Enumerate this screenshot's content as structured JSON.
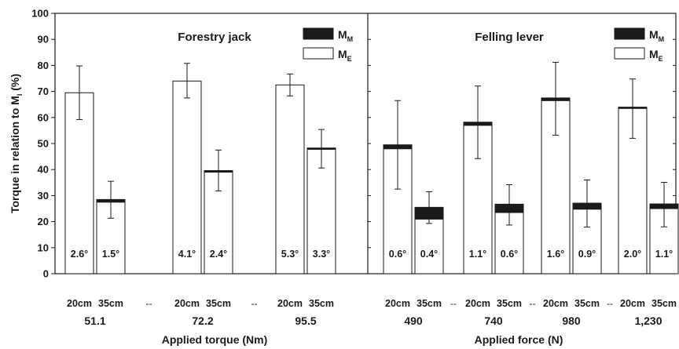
{
  "chart_data": {
    "type": "bar",
    "ylabel": "Torque in relation to M",
    "ylabel_sub": "I",
    "ylabel_unit": "(%)",
    "ylim": [
      0,
      100
    ],
    "yticks": [
      0,
      10,
      20,
      30,
      40,
      50,
      60,
      70,
      80,
      90,
      100
    ],
    "legend": [
      {
        "key": "MM",
        "label": "M",
        "sub": "M",
        "color": "#1a1a1a"
      },
      {
        "key": "ME",
        "label": "M",
        "sub": "E",
        "color": "#ffffff"
      }
    ],
    "separator": "--",
    "panels": [
      {
        "title": "Forestry jack",
        "xlabel": "Applied torque (Nm)",
        "groups": [
          {
            "value_label": "51.1",
            "bars": [
              {
                "length": "20cm",
                "ME": 69.5,
                "MM": 0,
                "err_low": 59.2,
                "err_high": 79.8,
                "angle": "2.6°"
              },
              {
                "length": "35cm",
                "ME": 27.5,
                "MM": 1.0,
                "err_low": 21.3,
                "err_high": 35.5,
                "angle": "1.5°"
              }
            ]
          },
          {
            "value_label": "72.2",
            "bars": [
              {
                "length": "20cm",
                "ME": 74.0,
                "MM": 0,
                "err_low": 67.5,
                "err_high": 80.8,
                "angle": "4.1°"
              },
              {
                "length": "35cm",
                "ME": 39.0,
                "MM": 0.6,
                "err_low": 31.8,
                "err_high": 47.5,
                "angle": "2.4°"
              }
            ]
          },
          {
            "value_label": "95.5",
            "bars": [
              {
                "length": "20cm",
                "ME": 72.5,
                "MM": 0,
                "err_low": 68.3,
                "err_high": 76.7,
                "angle": "5.3°"
              },
              {
                "length": "35cm",
                "ME": 47.8,
                "MM": 0.3,
                "err_low": 40.6,
                "err_high": 55.4,
                "angle": "3.3°"
              }
            ]
          }
        ]
      },
      {
        "title": "Felling lever",
        "xlabel": "Applied force (N)",
        "groups": [
          {
            "value_label": "490",
            "bars": [
              {
                "length": "20cm",
                "ME": 48.0,
                "MM": 1.5,
                "err_low": 32.5,
                "err_high": 66.5,
                "angle": "0.6°"
              },
              {
                "length": "35cm",
                "ME": 21.0,
                "MM": 4.5,
                "err_low": 19.3,
                "err_high": 31.5,
                "angle": "0.4°"
              }
            ]
          },
          {
            "value_label": "740",
            "bars": [
              {
                "length": "20cm",
                "ME": 57.0,
                "MM": 1.2,
                "err_low": 44.2,
                "err_high": 72.1,
                "angle": "1.1°"
              },
              {
                "length": "35cm",
                "ME": 23.5,
                "MM": 3.2,
                "err_low": 18.7,
                "err_high": 34.2,
                "angle": "0.6°"
              }
            ]
          },
          {
            "value_label": "980",
            "bars": [
              {
                "length": "20cm",
                "ME": 66.5,
                "MM": 1.0,
                "err_low": 53.2,
                "err_high": 81.2,
                "angle": "1.6°"
              },
              {
                "length": "35cm",
                "ME": 24.8,
                "MM": 2.3,
                "err_low": 17.9,
                "err_high": 36.0,
                "angle": "0.9°"
              }
            ]
          },
          {
            "value_label": "1,230",
            "bars": [
              {
                "length": "20cm",
                "ME": 63.5,
                "MM": 0.3,
                "err_low": 52.0,
                "err_high": 74.8,
                "angle": "2.0°"
              },
              {
                "length": "35cm",
                "ME": 25.0,
                "MM": 1.8,
                "err_low": 18.0,
                "err_high": 35.1,
                "angle": "1.1°"
              }
            ]
          }
        ]
      }
    ]
  }
}
